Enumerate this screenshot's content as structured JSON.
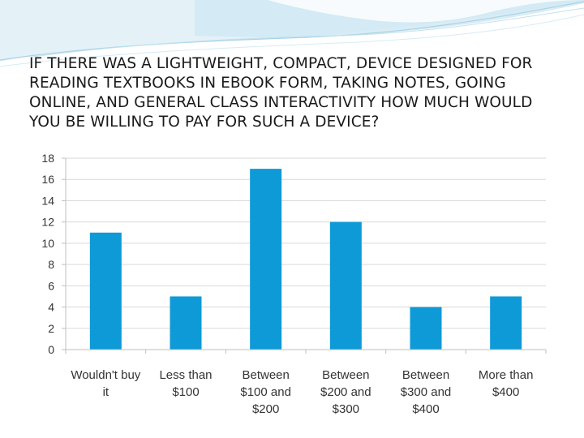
{
  "slide": {
    "title": "IF THERE WAS A LIGHTWEIGHT, COMPACT, DEVICE DESIGNED FOR READING TEXTBOOKS IN EBOOK FORM, TAKING NOTES, GOING ONLINE, AND GENERAL CLASS INTERACTIVITY HOW MUCH WOULD YOU BE WILLING TO PAY FOR SUCH A DEVICE?",
    "theme_colors": {
      "swoosh_light": "#dff0f7",
      "swoosh_mid": "#b9dcec",
      "swoosh_line": "#9fcbe0"
    }
  },
  "chart_data": {
    "type": "bar",
    "title": "",
    "xlabel": "",
    "ylabel": "",
    "categories": [
      [
        "Wouldn't buy",
        "it"
      ],
      [
        "Less than",
        "$100"
      ],
      [
        "Between",
        "$100 and",
        "$200"
      ],
      [
        "Between",
        "$200 and",
        "$300"
      ],
      [
        "Between",
        "$300 and",
        "$400"
      ],
      [
        "More than",
        "$400"
      ]
    ],
    "values": [
      11,
      5,
      17,
      12,
      4,
      5
    ],
    "ylim": [
      0,
      18
    ],
    "yticks": [
      0,
      2,
      4,
      6,
      8,
      10,
      12,
      14,
      16,
      18
    ],
    "grid": true,
    "legend": "none",
    "bar_color": "#0e9ad7"
  }
}
